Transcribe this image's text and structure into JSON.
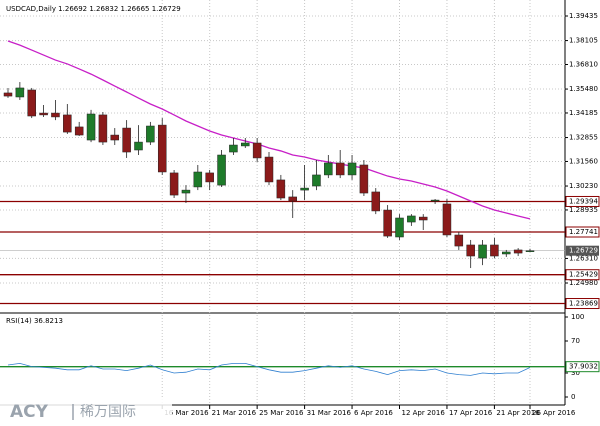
{
  "chart_data": {
    "type": "candlestick",
    "title": "USDCAD,Daily 1.26692 1.26832 1.26665 1.26729",
    "categories": [
      null,
      null,
      null,
      null,
      null,
      null,
      null,
      null,
      null,
      null,
      null,
      null,
      null,
      "16 Mar 2016",
      null,
      null,
      null,
      "21 Mar 2016",
      null,
      null,
      null,
      "25 Mar 2016",
      null,
      null,
      null,
      "31 Mar 2016",
      null,
      null,
      null,
      "6 Apr 2016",
      null,
      null,
      null,
      "12 Apr 2016",
      null,
      null,
      null,
      "17 Apr 2016",
      null,
      null,
      null,
      "21 Apr 2016",
      null,
      null,
      "26 Apr 2016"
    ],
    "open": [
      1.3527,
      1.3505,
      1.3543,
      1.3418,
      1.3418,
      1.3408,
      1.3343,
      1.3272,
      1.3408,
      1.3299,
      1.3337,
      1.3218,
      1.3261,
      1.3353,
      1.3094,
      1.2985,
      1.3018,
      1.3094,
      1.3028,
      1.3207,
      1.324,
      1.3256,
      1.318,
      1.3056,
      1.2964,
      1.3001,
      1.3023,
      1.3083,
      1.3148,
      1.3083,
      1.3137,
      1.2991,
      1.2893,
      1.2747,
      1.2828,
      1.2855,
      1.2942,
      1.2926,
      1.2758,
      1.2704,
      1.2633,
      1.2704,
      1.2655,
      1.2677,
      1.26692
    ],
    "high": [
      1.3554,
      1.3586,
      1.3554,
      1.3462,
      1.3489,
      1.3467,
      1.337,
      1.3435,
      1.3424,
      1.3337,
      1.338,
      1.3353,
      1.337,
      1.3391,
      1.311,
      1.3028,
      1.3137,
      1.311,
      1.3218,
      1.3283,
      1.3283,
      1.3283,
      1.3207,
      1.3083,
      1.3001,
      1.3137,
      1.3164,
      1.3191,
      1.3218,
      1.3191,
      1.3164,
      1.3012,
      1.292,
      1.2871,
      1.2871,
      1.2871,
      1.2953,
      1.2953,
      1.2774,
      1.2731,
      1.2731,
      1.2742,
      1.2677,
      1.2687,
      1.26832
    ],
    "low": [
      1.35,
      1.3489,
      1.3391,
      1.3397,
      1.338,
      1.3305,
      1.3294,
      1.3261,
      1.3245,
      1.3245,
      1.3175,
      1.3191,
      1.3245,
      1.3083,
      1.2958,
      1.2931,
      1.3001,
      1.3001,
      1.3018,
      1.3191,
      1.3229,
      1.3153,
      1.3028,
      1.2947,
      1.285,
      1.2947,
      1.3001,
      1.3066,
      1.3066,
      1.3056,
      1.2969,
      1.2871,
      1.2742,
      1.2731,
      1.2807,
      1.2785,
      1.2926,
      1.2747,
      1.2677,
      1.2579,
      1.2595,
      1.2633,
      1.2639,
      1.2644,
      1.26665
    ],
    "close": [
      1.351,
      1.3554,
      1.3402,
      1.3408,
      1.3397,
      1.3315,
      1.3299,
      1.3413,
      1.3261,
      1.3272,
      1.3207,
      1.3261,
      1.3348,
      1.3099,
      1.2974,
      1.3001,
      1.3099,
      1.3045,
      1.3191,
      1.3245,
      1.3256,
      1.3175,
      1.3045,
      1.2958,
      1.2942,
      1.3012,
      1.3083,
      1.3148,
      1.3083,
      1.3148,
      1.2985,
      1.2888,
      1.2752,
      1.285,
      1.2861,
      1.2839,
      1.2947,
      1.2758,
      1.2698,
      1.2644,
      1.2704,
      1.2644,
      1.2666,
      1.266,
      1.26729
    ],
    "up_color": "#1e7b2a",
    "down_color": "#8b1a1a",
    "ma_values": [
      1.3808,
      1.3786,
      1.3759,
      1.3732,
      1.3705,
      1.3684,
      1.3657,
      1.3629,
      1.3597,
      1.3564,
      1.3532,
      1.3499,
      1.3467,
      1.344,
      1.3408,
      1.3375,
      1.3348,
      1.3321,
      1.3299,
      1.3283,
      1.3267,
      1.3251,
      1.3229,
      1.3213,
      1.3191,
      1.318,
      1.3164,
      1.3153,
      1.3142,
      1.3131,
      1.3121,
      1.3099,
      1.3077,
      1.3061,
      1.305,
      1.3034,
      1.3018,
      1.2996,
      1.2969,
      1.2942,
      1.2915,
      1.2893,
      1.2877,
      1.2861,
      1.2845
    ],
    "ma_color": "#c71fc7",
    "ylim": [
      1.2341,
      1.40085
    ],
    "yticks": [
      {
        "value": 1.39435,
        "label": "1.39435"
      },
      {
        "value": 1.38105,
        "label": "1.38105"
      },
      {
        "value": 1.3681,
        "label": "1.36810"
      },
      {
        "value": 1.3548,
        "label": "1.35480"
      },
      {
        "value": 1.34185,
        "label": "1.34185"
      },
      {
        "value": 1.32855,
        "label": "1.32855"
      },
      {
        "value": 1.3156,
        "label": "1.31560"
      },
      {
        "value": 1.3023,
        "label": "1.30230"
      },
      {
        "value": 1.28935,
        "label": "1.28935"
      },
      {
        "value": 1.2631,
        "label": "1.26310"
      },
      {
        "value": 1.2498,
        "label": "1.24980"
      }
    ],
    "levels": [
      1.29394,
      1.27741,
      1.25429,
      1.23869
    ],
    "level_color": "#8b0000",
    "current_price": 1.26729,
    "grid": true,
    "rsi": {
      "title": "RSI(14) 36.8213",
      "values": [
        40,
        42,
        38,
        37,
        36,
        34,
        34,
        39,
        35,
        35,
        33,
        36,
        40,
        34,
        30,
        31,
        35,
        34,
        40,
        42,
        42,
        38,
        34,
        31,
        31,
        33,
        36,
        39,
        37,
        39,
        35,
        32,
        28,
        33,
        34,
        33,
        35,
        30,
        28,
        27,
        30,
        29,
        30,
        30,
        36.8213
      ],
      "color": "#2f7fd0",
      "ylim": [
        0,
        100
      ],
      "yticks": [
        100,
        70,
        30,
        0
      ],
      "level": 37.9032,
      "level_color": "#1e8a2a"
    }
  },
  "watermark": {
    "brand": "ACY",
    "name": "稀万国际"
  }
}
